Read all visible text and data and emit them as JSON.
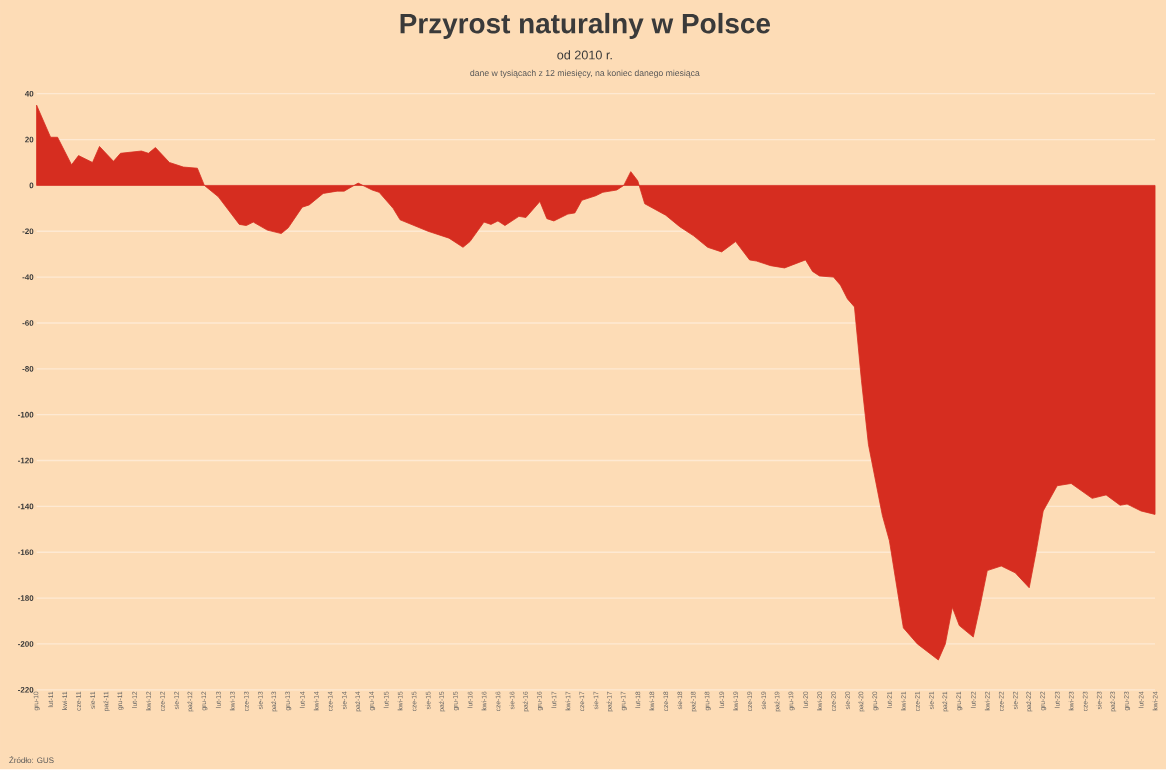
{
  "chart_data": {
    "type": "area",
    "title": "Przyrost naturalny w Polsce",
    "subtitle": "od 2010 r.",
    "annotations": [
      "dane w tysiącach z 12 miesięcy, na koniec danego miesiąca",
      "Źródło: GUS"
    ],
    "x": [
      "2010-12",
      "2011-02",
      "2011-03",
      "2011-05",
      "2011-06",
      "2011-08",
      "2011-09",
      "2011-11",
      "2011-12",
      "2012-03",
      "2012-04",
      "2012-05",
      "2012-07",
      "2012-09",
      "2012-11",
      "2012-12",
      "2013-02",
      "2013-05",
      "2013-06",
      "2013-07",
      "2013-09",
      "2013-11",
      "2013-12",
      "2014-02",
      "2014-03",
      "2014-05",
      "2014-07",
      "2014-08",
      "2014-10",
      "2014-12",
      "2015-01",
      "2015-03",
      "2015-04",
      "2015-08",
      "2015-11",
      "2016-01",
      "2016-02",
      "2016-04",
      "2016-05",
      "2016-06",
      "2016-07",
      "2016-09",
      "2016-10",
      "2016-12",
      "2017-01",
      "2017-02",
      "2017-04",
      "2017-05",
      "2017-06",
      "2017-08",
      "2017-09",
      "2017-11",
      "2017-12",
      "2018-01",
      "2018-02",
      "2018-03",
      "2018-06",
      "2018-08",
      "2018-10",
      "2018-12",
      "2019-02",
      "2019-04",
      "2019-06",
      "2019-07",
      "2019-09",
      "2019-11",
      "2020-02",
      "2020-03",
      "2020-04",
      "2020-06",
      "2020-07",
      "2020-08",
      "2020-09",
      "2020-10",
      "2020-11",
      "2021-01",
      "2021-02",
      "2021-04",
      "2021-06",
      "2021-09",
      "2021-10",
      "2021-11",
      "2021-12",
      "2022-02",
      "2022-03",
      "2022-04",
      "2022-06",
      "2022-08",
      "2022-10",
      "2022-11",
      "2022-12",
      "2023-02",
      "2023-04",
      "2023-07",
      "2023-09",
      "2023-11",
      "2023-12",
      "2024-02",
      "2024-04"
    ],
    "series": [
      {
        "color": "#d62d20",
        "values": [
          35,
          21,
          21,
          9,
          13,
          10,
          17,
          10.5,
          14,
          15,
          14,
          16.5,
          10,
          8,
          7.5,
          0,
          -5,
          -17,
          -17.5,
          -16,
          -19.5,
          -21,
          -18.5,
          -9.5,
          -8.5,
          -3.5,
          -2.5,
          -2.5,
          1,
          -2,
          -3,
          -10,
          -15,
          -20,
          -23,
          -27,
          -24.5,
          -16,
          -17,
          -15.5,
          -17.5,
          -13.5,
          -14,
          -7,
          -14.5,
          -15.5,
          -12.5,
          -12,
          -6.5,
          -4.5,
          -3,
          -2,
          0,
          6,
          2,
          -8,
          -13,
          -18,
          -22,
          -27,
          -29,
          -24.5,
          -32.5,
          -33,
          -35,
          -36,
          -32.5,
          -37.5,
          -39.5,
          -40,
          -43.5,
          -49.5,
          -53,
          -85,
          -113,
          -144,
          -155,
          -193,
          -200,
          -207,
          -200,
          -184,
          -192,
          -197,
          -183,
          -168,
          -166,
          -169,
          -175.5,
          -159.5,
          -142,
          -131,
          -130,
          -136.5,
          -135,
          -139.5,
          -139,
          -142,
          -143.5
        ]
      }
    ],
    "xlim": [
      "2010-12",
      "2024-04"
    ],
    "ylim": [
      -220,
      40
    ],
    "yticks": [
      40,
      20,
      0,
      -20,
      -40,
      -60,
      -80,
      -100,
      -120,
      -140,
      -160,
      -180,
      -200,
      -220
    ],
    "xticks": [
      {
        "value": "2010-12",
        "label": "gru-10"
      },
      {
        "value": "2011-02",
        "label": "lut-11"
      },
      {
        "value": "2011-04",
        "label": "kwi-11"
      },
      {
        "value": "2011-06",
        "label": "cze-11"
      },
      {
        "value": "2011-08",
        "label": "sie-11"
      },
      {
        "value": "2011-10",
        "label": "paź-11"
      },
      {
        "value": "2011-12",
        "label": "gru-11"
      },
      {
        "value": "2012-02",
        "label": "lut-12"
      },
      {
        "value": "2012-04",
        "label": "kwi-12"
      },
      {
        "value": "2012-06",
        "label": "cze-12"
      },
      {
        "value": "2012-08",
        "label": "sie-12"
      },
      {
        "value": "2012-10",
        "label": "paź-12"
      },
      {
        "value": "2012-12",
        "label": "gru-12"
      },
      {
        "value": "2013-02",
        "label": "lut-13"
      },
      {
        "value": "2013-04",
        "label": "kwi-13"
      },
      {
        "value": "2013-06",
        "label": "cze-13"
      },
      {
        "value": "2013-08",
        "label": "sie-13"
      },
      {
        "value": "2013-10",
        "label": "paź-13"
      },
      {
        "value": "2013-12",
        "label": "gru-13"
      },
      {
        "value": "2014-02",
        "label": "lut-14"
      },
      {
        "value": "2014-04",
        "label": "kwi-14"
      },
      {
        "value": "2014-06",
        "label": "cze-14"
      },
      {
        "value": "2014-08",
        "label": "sie-14"
      },
      {
        "value": "2014-10",
        "label": "paź-14"
      },
      {
        "value": "2014-12",
        "label": "gru-14"
      },
      {
        "value": "2015-02",
        "label": "lut-15"
      },
      {
        "value": "2015-04",
        "label": "kwi-15"
      },
      {
        "value": "2015-06",
        "label": "cze-15"
      },
      {
        "value": "2015-08",
        "label": "sie-15"
      },
      {
        "value": "2015-10",
        "label": "paź-15"
      },
      {
        "value": "2015-12",
        "label": "gru-15"
      },
      {
        "value": "2016-02",
        "label": "lut-16"
      },
      {
        "value": "2016-04",
        "label": "kwi-16"
      },
      {
        "value": "2016-06",
        "label": "cze-16"
      },
      {
        "value": "2016-08",
        "label": "sie-16"
      },
      {
        "value": "2016-10",
        "label": "paź-16"
      },
      {
        "value": "2016-12",
        "label": "gru-16"
      },
      {
        "value": "2017-02",
        "label": "lut-17"
      },
      {
        "value": "2017-04",
        "label": "kwi-17"
      },
      {
        "value": "2017-06",
        "label": "cze-17"
      },
      {
        "value": "2017-08",
        "label": "sie-17"
      },
      {
        "value": "2017-10",
        "label": "paź-17"
      },
      {
        "value": "2017-12",
        "label": "gru-17"
      },
      {
        "value": "2018-02",
        "label": "lut-18"
      },
      {
        "value": "2018-04",
        "label": "kwi-18"
      },
      {
        "value": "2018-06",
        "label": "cze-18"
      },
      {
        "value": "2018-08",
        "label": "sie-18"
      },
      {
        "value": "2018-10",
        "label": "paź-18"
      },
      {
        "value": "2018-12",
        "label": "gru-18"
      },
      {
        "value": "2019-02",
        "label": "lut-19"
      },
      {
        "value": "2019-04",
        "label": "kwi-19"
      },
      {
        "value": "2019-06",
        "label": "cze-19"
      },
      {
        "value": "2019-08",
        "label": "sie-19"
      },
      {
        "value": "2019-10",
        "label": "paź-19"
      },
      {
        "value": "2019-12",
        "label": "gru-19"
      },
      {
        "value": "2020-02",
        "label": "lut-20"
      },
      {
        "value": "2020-04",
        "label": "kwi-20"
      },
      {
        "value": "2020-06",
        "label": "cze-20"
      },
      {
        "value": "2020-08",
        "label": "sie-20"
      },
      {
        "value": "2020-10",
        "label": "paź-20"
      },
      {
        "value": "2020-12",
        "label": "gru-20"
      },
      {
        "value": "2021-02",
        "label": "lut-21"
      },
      {
        "value": "2021-04",
        "label": "kwi-21"
      },
      {
        "value": "2021-06",
        "label": "cze-21"
      },
      {
        "value": "2021-08",
        "label": "sie-21"
      },
      {
        "value": "2021-10",
        "label": "paź-21"
      },
      {
        "value": "2021-12",
        "label": "gru-21"
      },
      {
        "value": "2022-02",
        "label": "lut-22"
      },
      {
        "value": "2022-04",
        "label": "kwi-22"
      },
      {
        "value": "2022-06",
        "label": "cze-22"
      },
      {
        "value": "2022-08",
        "label": "sie-22"
      },
      {
        "value": "2022-10",
        "label": "paź-22"
      },
      {
        "value": "2022-12",
        "label": "gru-22"
      },
      {
        "value": "2023-02",
        "label": "lut-23"
      },
      {
        "value": "2023-04",
        "label": "kwi-23"
      },
      {
        "value": "2023-06",
        "label": "cze-23"
      },
      {
        "value": "2023-08",
        "label": "sie-23"
      },
      {
        "value": "2023-10",
        "label": "paź-23"
      },
      {
        "value": "2023-12",
        "label": "gru-23"
      },
      {
        "value": "2024-02",
        "label": "lut-24"
      },
      {
        "value": "2024-04",
        "label": "kwi-24"
      }
    ],
    "grid": "y"
  }
}
